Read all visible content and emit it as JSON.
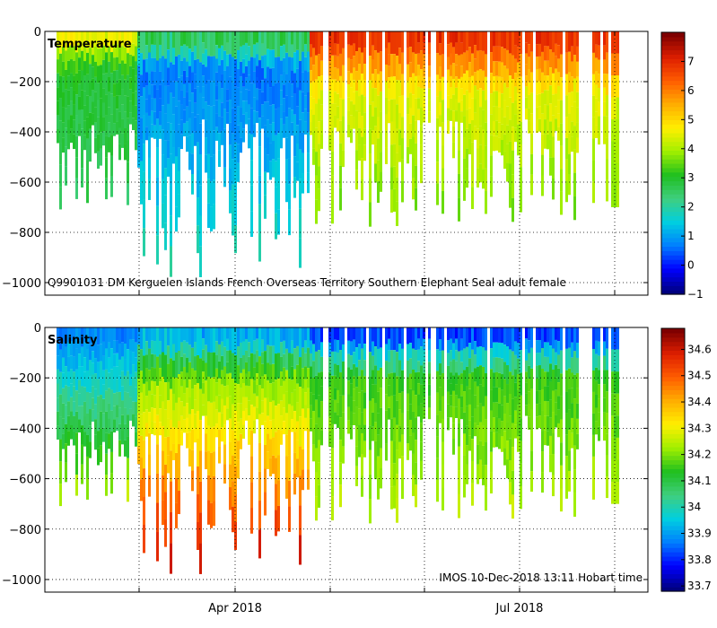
{
  "chart_data": [
    {
      "type": "heatmap",
      "title": "Temperature",
      "annotation": "Q9901031 DM Kerguelen Islands French Overseas Territory Southern Elephant Seal adult female",
      "xlabel": "",
      "ylabel": "",
      "x_tick_labels": [
        "Apr 2018",
        "Jul 2018"
      ],
      "y_ticks": [
        0,
        -200,
        -400,
        -600,
        -800,
        -1000
      ],
      "ylim": [
        -1050,
        0
      ],
      "colorbar": {
        "min": -1,
        "max": 8,
        "ticks": [
          -1,
          0,
          1,
          2,
          3,
          4,
          5,
          6,
          7
        ]
      },
      "colormap": [
        "#00007f",
        "#0000ff",
        "#007fff",
        "#00cfdf",
        "#3fcf7f",
        "#1fbf1f",
        "#9fef00",
        "#ffef00",
        "#ffaf00",
        "#ff5f00",
        "#df1f00",
        "#7f0000"
      ],
      "profile_phases": [
        {
          "from_time": 0.0,
          "to_time": 0.14,
          "surface_value": 5.0,
          "mid_value": 3.0,
          "deep_value": 2.3,
          "mid_depth": 150
        },
        {
          "from_time": 0.14,
          "to_time": 0.44,
          "surface_value": 3.2,
          "mid_value": 0.6,
          "deep_value": 2.0,
          "mid_depth": 160
        },
        {
          "from_time": 0.44,
          "to_time": 1.0,
          "surface_value": 7.3,
          "mid_value": 4.5,
          "deep_value": 3.2,
          "mid_depth": 250
        }
      ],
      "max_profile_depth": 1000
    },
    {
      "type": "heatmap",
      "title": "Salinity",
      "annotation": "IMOS 10-Dec-2018 13:11 Hobart time",
      "xlabel": "",
      "ylabel": "",
      "x_tick_labels": [
        "Apr 2018",
        "Jul 2018"
      ],
      "y_ticks": [
        0,
        -200,
        -400,
        -600,
        -800,
        -1000
      ],
      "ylim": [
        -1050,
        0
      ],
      "colorbar": {
        "min": 33.68,
        "max": 34.68,
        "ticks": [
          33.7,
          33.8,
          33.9,
          34,
          34.1,
          34.2,
          34.3,
          34.4,
          34.5,
          34.6
        ]
      },
      "colormap": [
        "#00007f",
        "#0000ff",
        "#007fff",
        "#00cfdf",
        "#3fcf7f",
        "#1fbf1f",
        "#9fef00",
        "#ffef00",
        "#ffaf00",
        "#ff5f00",
        "#df1f00",
        "#7f0000"
      ],
      "profile_phases": [
        {
          "from_time": 0.0,
          "to_time": 0.14,
          "surface_value": 33.85,
          "mid_value": 34.0,
          "deep_value": 34.45,
          "mid_depth": 250
        },
        {
          "from_time": 0.14,
          "to_time": 0.44,
          "surface_value": 33.85,
          "mid_value": 34.2,
          "deep_value": 34.65,
          "mid_depth": 200
        },
        {
          "from_time": 0.44,
          "to_time": 1.0,
          "surface_value": 33.75,
          "mid_value": 34.15,
          "deep_value": 34.3,
          "mid_depth": 200
        }
      ],
      "max_profile_depth": 1000
    }
  ]
}
